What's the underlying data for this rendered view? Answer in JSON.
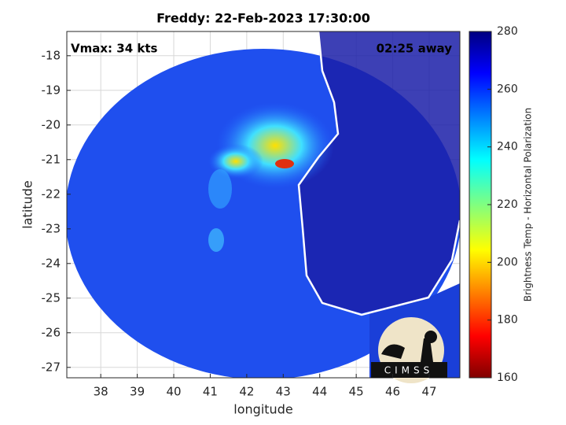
{
  "chart_data": {
    "type": "map",
    "title": "Freddy: 22-Feb-2023 17:30:00",
    "annotations": [
      "Vmax: 34 kts",
      "02:25 away"
    ],
    "x_label": "longitude",
    "y_label": "latitude",
    "xlim": [
      37.07,
      47.84
    ],
    "xticks": [
      38,
      39,
      40,
      41,
      42,
      43,
      44,
      45,
      46,
      47
    ],
    "ylim": [
      -27.3,
      -17.3
    ],
    "yticks": [
      -27,
      -26,
      -25,
      -24,
      -23,
      -22,
      -21,
      -20,
      -19,
      -18
    ],
    "grid": true,
    "colorbar": {
      "label": "Brightness Temp - Horizontal Polarization",
      "colormap": "jet",
      "clim": [
        160,
        280
      ],
      "cticks": [
        160,
        180,
        200,
        220,
        240,
        260,
        280
      ]
    },
    "logo": "CIMSS"
  }
}
